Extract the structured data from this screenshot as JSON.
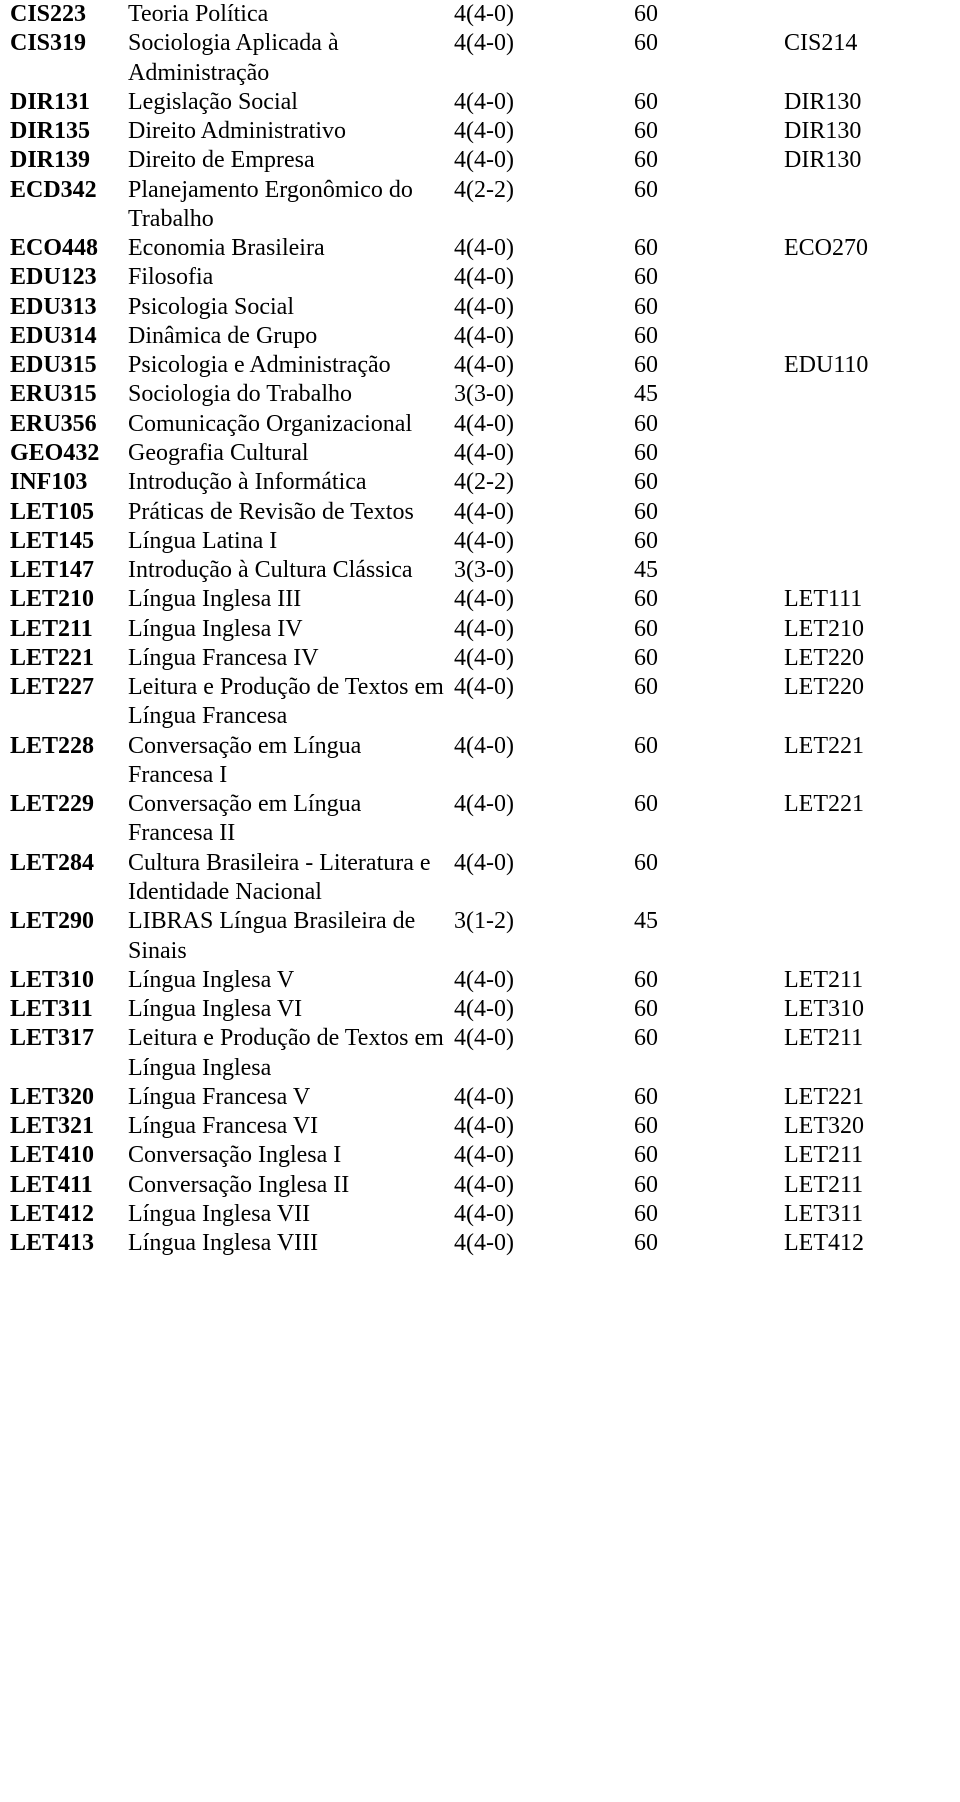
{
  "courses": [
    {
      "code": "CIS223",
      "name": "Teoria Política",
      "credits": "4(4-0)",
      "hours": "60",
      "prereq": ""
    },
    {
      "code": "CIS319",
      "name": "Sociologia Aplicada à Administração",
      "credits": "4(4-0)",
      "hours": "60",
      "prereq": "CIS214"
    },
    {
      "code": "DIR131",
      "name": "Legislação Social",
      "credits": "4(4-0)",
      "hours": "60",
      "prereq": "DIR130"
    },
    {
      "code": "DIR135",
      "name": "Direito Administrativo",
      "credits": "4(4-0)",
      "hours": "60",
      "prereq": "DIR130"
    },
    {
      "code": "DIR139",
      "name": "Direito de Empresa",
      "credits": "4(4-0)",
      "hours": "60",
      "prereq": "DIR130"
    },
    {
      "code": "ECD342",
      "name": "Planejamento Ergonômico do Trabalho",
      "credits": "4(2-2)",
      "hours": "60",
      "prereq": ""
    },
    {
      "code": "ECO448",
      "name": "Economia Brasileira",
      "credits": "4(4-0)",
      "hours": "60",
      "prereq": "ECO270"
    },
    {
      "code": "EDU123",
      "name": "Filosofia",
      "credits": "4(4-0)",
      "hours": "60",
      "prereq": ""
    },
    {
      "code": "EDU313",
      "name": "Psicologia Social",
      "credits": "4(4-0)",
      "hours": "60",
      "prereq": ""
    },
    {
      "code": "EDU314",
      "name": "Dinâmica de Grupo",
      "credits": "4(4-0)",
      "hours": "60",
      "prereq": ""
    },
    {
      "code": "EDU315",
      "name": "Psicologia e Administração",
      "credits": "4(4-0)",
      "hours": "60",
      "prereq": "EDU110"
    },
    {
      "code": "ERU315",
      "name": "Sociologia do Trabalho",
      "credits": "3(3-0)",
      "hours": "45",
      "prereq": ""
    },
    {
      "code": "ERU356",
      "name": "Comunicação Organizacional",
      "credits": "4(4-0)",
      "hours": "60",
      "prereq": ""
    },
    {
      "code": "GEO432",
      "name": "Geografia Cultural",
      "credits": "4(4-0)",
      "hours": "60",
      "prereq": ""
    },
    {
      "code": "INF103",
      "name": "Introdução à Informática",
      "credits": "4(2-2)",
      "hours": "60",
      "prereq": ""
    },
    {
      "code": "LET105",
      "name": "Práticas de Revisão de Textos",
      "credits": "4(4-0)",
      "hours": "60",
      "prereq": ""
    },
    {
      "code": "LET145",
      "name": "Língua Latina I",
      "credits": "4(4-0)",
      "hours": "60",
      "prereq": ""
    },
    {
      "code": "LET147",
      "name": "Introdução à Cultura Clássica",
      "credits": "3(3-0)",
      "hours": "45",
      "prereq": ""
    },
    {
      "code": "LET210",
      "name": "Língua Inglesa III",
      "credits": "4(4-0)",
      "hours": "60",
      "prereq": "LET111"
    },
    {
      "code": "LET211",
      "name": "Língua Inglesa IV",
      "credits": "4(4-0)",
      "hours": "60",
      "prereq": "LET210"
    },
    {
      "code": "LET221",
      "name": "Língua Francesa IV",
      "credits": "4(4-0)",
      "hours": "60",
      "prereq": "LET220"
    },
    {
      "code": "LET227",
      "name": "Leitura e Produção de Textos em Língua Francesa",
      "credits": "4(4-0)",
      "hours": "60",
      "prereq": "LET220"
    },
    {
      "code": "LET228",
      "name": "Conversação em Língua Francesa I",
      "credits": "4(4-0)",
      "hours": "60",
      "prereq": "LET221"
    },
    {
      "code": "LET229",
      "name": "Conversação em Língua Francesa II",
      "credits": "4(4-0)",
      "hours": "60",
      "prereq": "LET221"
    },
    {
      "code": "LET284",
      "name": "Cultura Brasileira - Literatura e Identidade Nacional",
      "credits": "4(4-0)",
      "hours": "60",
      "prereq": ""
    },
    {
      "code": "LET290",
      "name": "LIBRAS Língua Brasileira de Sinais",
      "credits": "3(1-2)",
      "hours": "45",
      "prereq": ""
    },
    {
      "code": "LET310",
      "name": "Língua Inglesa V",
      "credits": "4(4-0)",
      "hours": "60",
      "prereq": "LET211"
    },
    {
      "code": "LET311",
      "name": "Língua Inglesa VI",
      "credits": "4(4-0)",
      "hours": "60",
      "prereq": "LET310"
    },
    {
      "code": "LET317",
      "name": "Leitura e Produção de Textos em Língua Inglesa",
      "credits": "4(4-0)",
      "hours": "60",
      "prereq": "LET211"
    },
    {
      "code": "LET320",
      "name": "Língua Francesa V",
      "credits": "4(4-0)",
      "hours": "60",
      "prereq": "LET221"
    },
    {
      "code": "LET321",
      "name": "Língua Francesa VI",
      "credits": "4(4-0)",
      "hours": "60",
      "prereq": "LET320"
    },
    {
      "code": "LET410",
      "name": "Conversação Inglesa I",
      "credits": "4(4-0)",
      "hours": "60",
      "prereq": "LET211"
    },
    {
      "code": "LET411",
      "name": "Conversação Inglesa II",
      "credits": "4(4-0)",
      "hours": "60",
      "prereq": "LET211"
    },
    {
      "code": "LET412",
      "name": "Língua Inglesa VII",
      "credits": "4(4-0)",
      "hours": "60",
      "prereq": "LET311"
    },
    {
      "code": "LET413",
      "name": "Língua Inglesa VIII",
      "credits": "4(4-0)",
      "hours": "60",
      "prereq": "LET412"
    }
  ]
}
